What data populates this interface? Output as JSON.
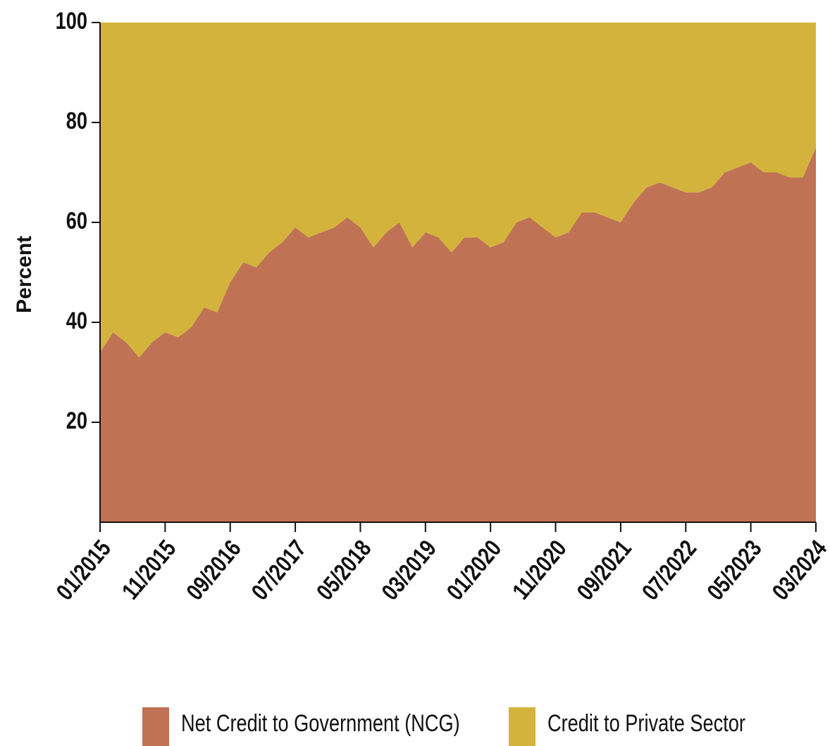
{
  "chart_data": {
    "type": "stacked_area",
    "y_label": "Percent",
    "categories": [
      "01/2015",
      null,
      null,
      null,
      null,
      "11/2015",
      null,
      null,
      null,
      null,
      "09/2016",
      null,
      null,
      null,
      null,
      "07/2017",
      null,
      null,
      null,
      null,
      "05/2018",
      null,
      null,
      null,
      null,
      "03/2019",
      null,
      null,
      null,
      null,
      "01/2020",
      null,
      null,
      null,
      null,
      "11/2020",
      null,
      null,
      null,
      null,
      "09/2021",
      null,
      null,
      null,
      null,
      "07/2022",
      null,
      null,
      null,
      null,
      "05/2023",
      null,
      null,
      null,
      null,
      "03/2024"
    ],
    "series": [
      {
        "name": "Net Credit to Government (NCG)",
        "color": "#bf7354",
        "values": [
          34,
          38,
          36,
          33,
          36,
          38,
          37,
          39,
          43,
          42,
          48,
          52,
          51,
          54,
          56,
          59,
          57,
          58,
          59,
          61,
          59,
          55,
          58,
          60,
          55,
          58,
          57,
          54,
          57,
          57,
          55,
          56,
          60,
          61,
          59,
          57,
          58,
          62,
          62,
          61,
          60,
          64,
          67,
          68,
          67,
          66,
          66,
          67,
          70,
          71,
          72,
          70,
          70,
          69,
          69,
          75
        ]
      },
      {
        "name": "Credit to Private Sector",
        "color": "#d4b33c",
        "values": [
          66,
          62,
          64,
          67,
          64,
          62,
          63,
          61,
          57,
          58,
          52,
          48,
          49,
          46,
          44,
          41,
          43,
          42,
          41,
          39,
          41,
          45,
          42,
          40,
          45,
          42,
          43,
          46,
          43,
          43,
          45,
          44,
          40,
          39,
          41,
          43,
          42,
          38,
          38,
          39,
          40,
          36,
          33,
          32,
          33,
          34,
          34,
          33,
          30,
          29,
          28,
          30,
          30,
          31,
          31,
          25
        ]
      }
    ],
    "ylim": [
      0,
      100
    ],
    "yticks": [
      20,
      40,
      60,
      80,
      100
    ]
  }
}
